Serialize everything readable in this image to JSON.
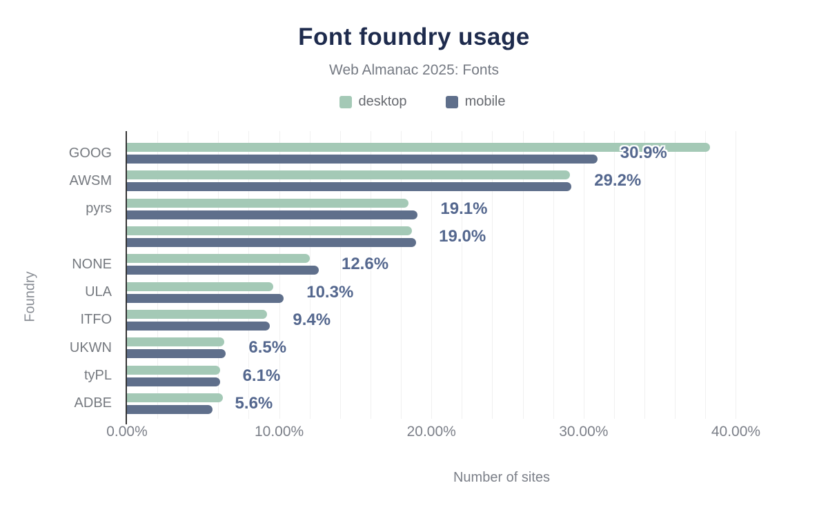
{
  "header": {
    "title": "Font foundry usage",
    "subtitle": "Web Almanac 2025: Fonts"
  },
  "legend": {
    "items": [
      {
        "label": "desktop",
        "color": "#a4c9b6"
      },
      {
        "label": "mobile",
        "color": "#5f6f8b"
      }
    ]
  },
  "axes": {
    "y_title": "Foundry",
    "x_title": "Number of sites",
    "x_ticks": [
      "0.00%",
      "10.00%",
      "20.00%",
      "30.00%",
      "40.00%"
    ],
    "x_tick_values": [
      0,
      10,
      20,
      30,
      40
    ]
  },
  "colors": {
    "title": "#1e2b4d",
    "subtitle": "#757a83",
    "axis_text": "#75797f",
    "data_label": "#54678e",
    "axis_line": "#333333",
    "gridline": "#f0f0f0",
    "background": "#ffffff"
  },
  "chart_data": {
    "type": "bar",
    "orientation": "horizontal",
    "title": "Font foundry usage",
    "subtitle": "Web Almanac 2025: Fonts",
    "xlabel": "Number of sites",
    "ylabel": "Foundry",
    "xlim": [
      0,
      41.7
    ],
    "grid": {
      "vertical_step_percent": 2,
      "color": "#f0f0f0"
    },
    "legend_position": "top",
    "categories": [
      "GOOG",
      "AWSM",
      "pyrs",
      "",
      "NONE",
      "ULA",
      "ITFO",
      "UKWN",
      "tyPL",
      "ADBE"
    ],
    "series": [
      {
        "name": "desktop",
        "color": "#a4c9b6",
        "values": [
          38.3,
          29.1,
          18.5,
          18.7,
          12.0,
          9.6,
          9.2,
          6.4,
          6.1,
          6.3
        ]
      },
      {
        "name": "mobile",
        "color": "#5f6f8b",
        "values": [
          30.9,
          29.2,
          19.1,
          19.0,
          12.6,
          10.3,
          9.4,
          6.5,
          6.1,
          5.6
        ]
      }
    ],
    "data_labels": {
      "attached_to_series": "mobile",
      "color": "#54678e",
      "texts": [
        "30.9%",
        "29.2%",
        "19.1%",
        "19.0%",
        "12.6%",
        "10.3%",
        "9.4%",
        "6.5%",
        "6.1%",
        "5.6%"
      ]
    }
  }
}
